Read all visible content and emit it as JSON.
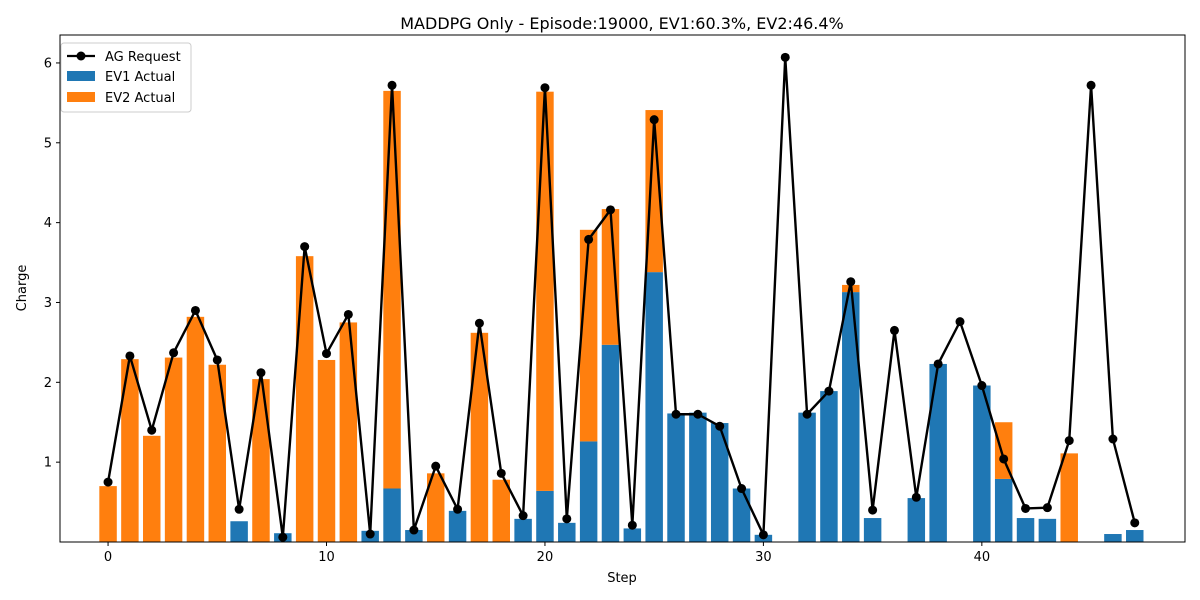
{
  "chart_data": {
    "type": "bar",
    "title": "MADDPG Only - Episode:19000, EV1:60.3%, EV2:46.4%",
    "xlabel": "Step",
    "ylabel": "Charge",
    "xlim": [
      -2.2,
      49.3
    ],
    "ylim": [
      0,
      6.35
    ],
    "x_ticks": [
      0,
      10,
      20,
      30,
      40
    ],
    "y_ticks": [
      1,
      2,
      3,
      4,
      5,
      6
    ],
    "legend_placement": "top-left",
    "grid": false,
    "colors": {
      "ev1": "#1f77b4",
      "ev2": "#ff7f0e",
      "request": "#000000"
    },
    "x": [
      0,
      1,
      2,
      3,
      4,
      5,
      6,
      7,
      8,
      9,
      10,
      11,
      12,
      13,
      14,
      15,
      16,
      17,
      18,
      19,
      20,
      21,
      22,
      23,
      24,
      25,
      26,
      27,
      28,
      29,
      30,
      31,
      32,
      33,
      34,
      35,
      36,
      37,
      38,
      39,
      40,
      41,
      42,
      43,
      44,
      45,
      46,
      47
    ],
    "series": [
      {
        "name": "EV1 Actual",
        "values": [
          0,
          0,
          0,
          0,
          0,
          0,
          0.26,
          0,
          0.11,
          0,
          0,
          0,
          0.14,
          0.67,
          0.15,
          0,
          0.39,
          0,
          0,
          0.29,
          0.64,
          0.24,
          1.26,
          2.47,
          0.17,
          3.38,
          1.61,
          1.62,
          1.49,
          0.67,
          0.09,
          0,
          1.62,
          1.89,
          3.13,
          0.3,
          0,
          0.55,
          2.23,
          0,
          1.96,
          0.79,
          0.3,
          0.29,
          0,
          0,
          0.1,
          0.15
        ]
      },
      {
        "name": "EV2 Actual",
        "values": [
          0.7,
          2.29,
          1.33,
          2.31,
          2.82,
          2.22,
          0,
          2.04,
          0,
          3.58,
          2.28,
          2.75,
          0,
          4.98,
          0,
          0.86,
          0,
          2.62,
          0.78,
          0,
          5.0,
          0,
          2.65,
          1.7,
          0,
          2.03,
          0,
          0,
          0,
          0,
          0,
          0,
          0,
          0,
          0.09,
          0,
          0,
          0,
          0,
          0,
          0,
          0.71,
          0,
          0,
          1.11,
          0,
          0,
          0
        ]
      },
      {
        "name": "AG Request",
        "values": [
          0.75,
          2.33,
          1.4,
          2.37,
          2.9,
          2.28,
          0.41,
          2.12,
          0.06,
          3.7,
          2.36,
          2.85,
          0.1,
          5.72,
          0.15,
          0.95,
          0.41,
          2.74,
          0.86,
          0.33,
          5.69,
          0.29,
          3.79,
          4.16,
          0.21,
          5.29,
          1.6,
          1.6,
          1.45,
          0.67,
          0.09,
          6.07,
          1.6,
          1.89,
          3.26,
          0.4,
          2.65,
          0.56,
          2.23,
          2.76,
          1.96,
          1.04,
          0.42,
          0.43,
          1.27,
          5.72,
          1.29,
          0.24
        ]
      }
    ]
  }
}
